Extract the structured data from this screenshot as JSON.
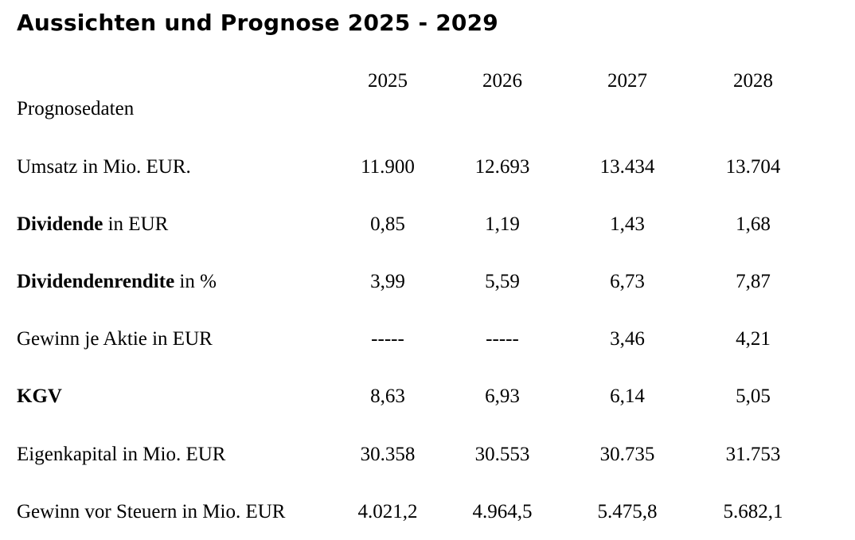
{
  "title": "Aussichten und Prognose 2025 - 2029",
  "header": {
    "row_label": "Prognosedaten",
    "years": [
      "2025",
      "2026",
      "2027",
      "2028"
    ]
  },
  "rows": [
    {
      "label_bold": "",
      "label": "Umsatz in Mio. EUR.",
      "values": [
        "11.900",
        "12.693",
        "13.434",
        "13.704"
      ]
    },
    {
      "label_bold": "Dividende",
      "label": " in EUR",
      "values": [
        "0,85",
        "1,19",
        "1,43",
        "1,68"
      ]
    },
    {
      "label_bold": "Dividendenrendite",
      "label": " in %",
      "values": [
        "3,99",
        "5,59",
        "6,73",
        "7,87"
      ]
    },
    {
      "label_bold": "",
      "label": "Gewinn je Aktie in EUR",
      "values": [
        "-----",
        "-----",
        "3,46",
        "4,21"
      ]
    },
    {
      "label_bold": "KGV",
      "label": "",
      "values": [
        "8,63",
        "6,93",
        "6,14",
        "5,05"
      ]
    },
    {
      "label_bold": "",
      "label": "Eigenkapital in Mio. EUR",
      "values": [
        "30.358",
        "30.553",
        "30.735",
        "31.753"
      ]
    },
    {
      "label_bold": "",
      "label": "Gewinn vor Steuern in Mio. EUR",
      "values": [
        "4.021,2",
        "4.964,5",
        "5.475,8",
        "5.682,1"
      ]
    }
  ]
}
